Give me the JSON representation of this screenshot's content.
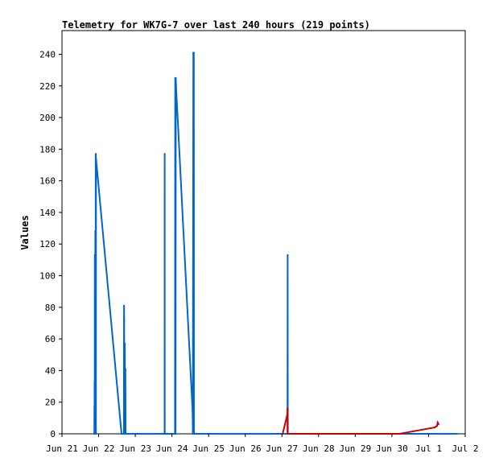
{
  "chart_data": {
    "type": "line",
    "title": "Telemetry for WK7G-7 over last 240 hours (219 points)",
    "xlabel": "",
    "ylabel": "Values",
    "x_ticks": [
      "Jun 21",
      "Jun 22",
      "Jun 23",
      "Jun 24",
      "Jun 25",
      "Jun 26",
      "Jun 27",
      "Jun 28",
      "Jun 29",
      "Jun 30",
      "Jul 1",
      "Jul 2"
    ],
    "xlim": [
      "2025-06-21T00:00",
      "2025-07-02T00:00"
    ],
    "y_ticks": [
      0,
      20,
      40,
      60,
      80,
      100,
      120,
      140,
      160,
      180,
      200,
      220,
      240
    ],
    "ylim": [
      0,
      255
    ],
    "grid": false,
    "legend": "none",
    "series_colors": [
      "#0066cc",
      "#cc0000"
    ],
    "series": [
      {
        "color": "#0066cc",
        "points": [
          [
            "2025-06-21T21:10",
            0
          ],
          [
            "2025-06-21T21:14",
            17
          ],
          [
            "2025-06-21T21:18",
            0
          ],
          [
            "2025-06-21T21:22",
            33
          ],
          [
            "2025-06-21T21:26",
            0
          ],
          [
            "2025-06-21T21:30",
            113
          ],
          [
            "2025-06-21T21:34",
            0
          ],
          [
            "2025-06-21T21:38",
            80
          ],
          [
            "2025-06-21T21:42",
            0
          ],
          [
            "2025-06-21T21:48",
            128
          ],
          [
            "2025-06-21T21:52",
            0
          ],
          [
            "2025-06-21T21:56",
            65
          ],
          [
            "2025-06-21T22:00",
            0
          ],
          [
            "2025-06-21T22:04",
            176
          ],
          [
            "2025-06-21T22:10",
            177
          ],
          [
            "2025-06-21T22:14",
            0
          ],
          [
            "2025-06-21T22:18",
            174
          ],
          [
            "2025-06-22T15:00",
            0
          ],
          [
            "2025-06-22T16:30",
            0
          ],
          [
            "2025-06-22T16:38",
            81
          ],
          [
            "2025-06-22T16:44",
            72
          ],
          [
            "2025-06-22T16:50",
            0
          ],
          [
            "2025-06-22T17:10",
            57
          ],
          [
            "2025-06-22T17:18",
            0
          ],
          [
            "2025-06-22T17:30",
            41
          ],
          [
            "2025-06-22T17:42",
            0
          ],
          [
            "2025-06-23T19:10",
            0
          ],
          [
            "2025-06-23T19:14",
            177
          ],
          [
            "2025-06-23T19:18",
            0
          ],
          [
            "2025-06-24T02:00",
            0
          ],
          [
            "2025-06-24T02:10",
            225
          ],
          [
            "2025-06-24T02:20",
            0
          ],
          [
            "2025-06-24T02:30",
            225
          ],
          [
            "2025-06-24T02:40",
            220
          ],
          [
            "2025-06-24T13:30",
            14
          ],
          [
            "2025-06-24T13:40",
            0
          ],
          [
            "2025-06-24T14:00",
            241
          ],
          [
            "2025-06-24T14:10",
            0
          ],
          [
            "2025-06-24T14:18",
            241
          ],
          [
            "2025-06-24T14:26",
            0
          ],
          [
            "2025-06-27T03:40",
            0
          ],
          [
            "2025-06-27T03:46",
            113
          ],
          [
            "2025-06-27T03:52",
            0
          ],
          [
            "2025-07-01T18:30",
            0
          ]
        ]
      },
      {
        "color": "#cc0000",
        "points": [
          [
            "2025-06-27T00:30",
            0
          ],
          [
            "2025-06-27T03:30",
            12
          ],
          [
            "2025-06-27T03:40",
            16
          ],
          [
            "2025-06-27T03:50",
            0
          ],
          [
            "2025-06-30T05:00",
            0
          ],
          [
            "2025-07-01T04:00",
            4
          ],
          [
            "2025-07-01T05:30",
            5
          ],
          [
            "2025-07-01T06:00",
            7
          ],
          [
            "2025-07-01T06:30",
            6
          ]
        ]
      }
    ]
  }
}
